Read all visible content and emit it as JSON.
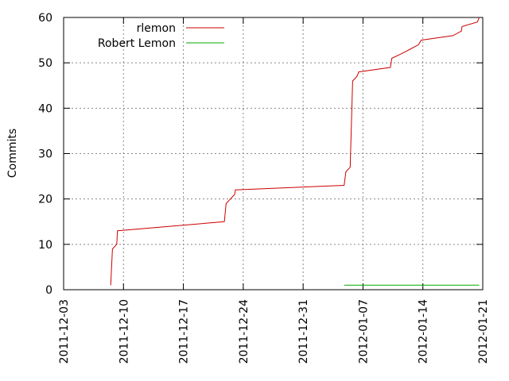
{
  "chart_data": {
    "type": "line",
    "title": "",
    "xlabel": "",
    "ylabel": "Commits",
    "xlim": [
      "2011-12-03",
      "2012-01-21"
    ],
    "ylim": [
      0,
      60
    ],
    "x_ticks": [
      "2011-12-03",
      "2011-12-10",
      "2011-12-17",
      "2011-12-24",
      "2011-12-31",
      "2012-01-07",
      "2012-01-14",
      "2012-01-21"
    ],
    "y_ticks": [
      0,
      10,
      20,
      30,
      40,
      50,
      60
    ],
    "grid": true,
    "legend_position": "top-left",
    "series": [
      {
        "name": "rlemon",
        "color": "#cc0000",
        "points": [
          [
            "2011-12-08T12:00",
            1
          ],
          [
            "2011-12-08T17:00",
            9
          ],
          [
            "2011-12-09T05:00",
            10
          ],
          [
            "2011-12-09T07:00",
            13
          ],
          [
            "2011-12-21T19:00",
            15
          ],
          [
            "2011-12-22T00:00",
            19
          ],
          [
            "2011-12-22T12:00",
            20
          ],
          [
            "2011-12-23T00:00",
            21
          ],
          [
            "2011-12-23T02:00",
            22
          ],
          [
            "2012-01-04T19:00",
            23
          ],
          [
            "2012-01-05T00:00",
            26
          ],
          [
            "2012-01-05T12:00",
            27
          ],
          [
            "2012-01-05T19:00",
            46
          ],
          [
            "2012-01-06T07:00",
            47
          ],
          [
            "2012-01-06T12:00",
            48
          ],
          [
            "2012-01-10T05:00",
            49
          ],
          [
            "2012-01-10T09:00",
            51
          ],
          [
            "2012-01-11T12:00",
            52
          ],
          [
            "2012-01-12T12:00",
            53
          ],
          [
            "2012-01-13T12:00",
            54
          ],
          [
            "2012-01-13T19:00",
            55
          ],
          [
            "2012-01-17T12:00",
            56
          ],
          [
            "2012-01-18T12:00",
            57
          ],
          [
            "2012-01-18T14:00",
            58
          ],
          [
            "2012-01-20T09:00",
            59
          ],
          [
            "2012-01-20T14:00",
            60
          ]
        ]
      },
      {
        "name": "Robert Lemon",
        "color": "#00aa00",
        "points": [
          [
            "2012-01-04T19:00",
            1
          ],
          [
            "2012-01-20T14:00",
            1
          ]
        ]
      }
    ]
  }
}
